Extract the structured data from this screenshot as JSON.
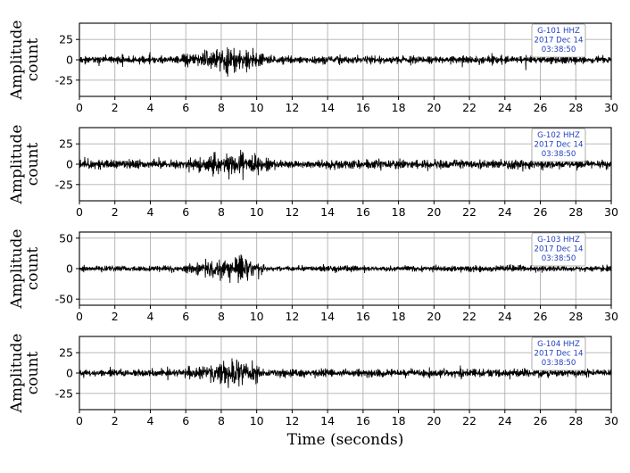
{
  "chart_data": [
    {
      "type": "line",
      "ylabel": [
        "Amplitude",
        "count"
      ],
      "xlim": [
        0,
        30
      ],
      "ylim": [
        -45,
        45
      ],
      "yticks": [
        -25,
        0,
        25
      ],
      "xticks": [
        0,
        2,
        4,
        6,
        8,
        10,
        12,
        14,
        16,
        18,
        20,
        22,
        24,
        26,
        28,
        30
      ],
      "grid": true,
      "label_lines": [
        "G-101  HHZ",
        "2017 Dec 14",
        "03:38:50"
      ],
      "label_position": "top-right",
      "series": [
        {
          "noise_amplitude": 7,
          "event_window": [
            5.8,
            10.5
          ],
          "event_peak_time": 8.2,
          "event_peak_amplitude": 40,
          "seed": 11
        }
      ]
    },
    {
      "type": "line",
      "ylabel": [
        "Amplitude",
        "count"
      ],
      "xlim": [
        0,
        30
      ],
      "ylim": [
        -45,
        45
      ],
      "yticks": [
        -25,
        0,
        25
      ],
      "xticks": [
        0,
        2,
        4,
        6,
        8,
        10,
        12,
        14,
        16,
        18,
        20,
        22,
        24,
        26,
        28,
        30
      ],
      "grid": true,
      "label_lines": [
        "G-102  HHZ",
        "2017 Dec 14",
        "03:38:50"
      ],
      "label_position": "top-right",
      "series": [
        {
          "noise_amplitude": 8,
          "event_window": [
            5.8,
            11.5
          ],
          "event_peak_time": 8.6,
          "event_peak_amplitude": 40,
          "seed": 23
        }
      ]
    },
    {
      "type": "line",
      "ylabel": [
        "Amplitude",
        "count"
      ],
      "xlim": [
        0,
        30
      ],
      "ylim": [
        -60,
        60
      ],
      "yticks": [
        -50,
        0,
        50
      ],
      "xticks": [
        0,
        2,
        4,
        6,
        8,
        10,
        12,
        14,
        16,
        18,
        20,
        22,
        24,
        26,
        28,
        30
      ],
      "grid": true,
      "label_lines": [
        "G-103  HHZ",
        "2017 Dec 14",
        "03:38:50"
      ],
      "label_position": "top-right",
      "series": [
        {
          "noise_amplitude": 7,
          "event_window": [
            5.9,
            10.5
          ],
          "event_peak_time": 9.1,
          "event_peak_amplitude": 56,
          "seed": 37
        }
      ]
    },
    {
      "type": "line",
      "ylabel": [
        "Amplitude",
        "count"
      ],
      "xlim": [
        0,
        30
      ],
      "ylim": [
        -45,
        45
      ],
      "yticks": [
        -25,
        0,
        25
      ],
      "xticks": [
        0,
        2,
        4,
        6,
        8,
        10,
        12,
        14,
        16,
        18,
        20,
        22,
        24,
        26,
        28,
        30
      ],
      "grid": true,
      "label_lines": [
        "G-104  HHZ",
        "2017 Dec 14",
        "03:38:50"
      ],
      "label_position": "top-right",
      "series": [
        {
          "noise_amplitude": 7,
          "event_window": [
            5.8,
            10.5
          ],
          "event_peak_time": 9.0,
          "event_peak_amplitude": 42,
          "seed": 51
        }
      ]
    }
  ],
  "xlabel": "Time (seconds)"
}
